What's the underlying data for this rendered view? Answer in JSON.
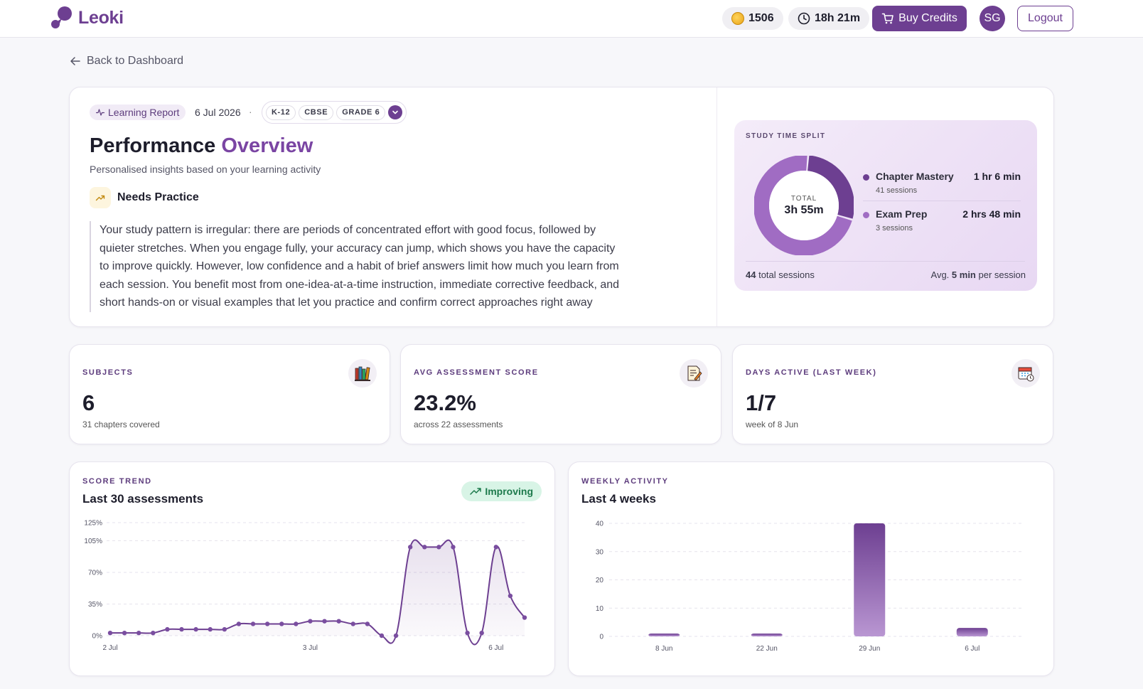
{
  "app": {
    "name": "Leoki"
  },
  "header": {
    "credits": "1506",
    "time_left": "18h 21m",
    "buy_label": "Buy Credits",
    "avatar_initials": "SG",
    "logout_label": "Logout"
  },
  "nav": {
    "back_label": "Back to Dashboard"
  },
  "report": {
    "tag": "Learning Report",
    "date": "6 Jul 2026",
    "separator": "·",
    "tags": [
      "K-12",
      "CBSE",
      "GRADE 6"
    ],
    "title_plain": "Performance",
    "title_accent": "Overview",
    "subtitle": "Personalised insights based on your learning activity",
    "status": "Needs Practice",
    "insight": "Your study pattern is irregular: there are periods of concentrated effort with good focus, followed by quieter stretches. When you engage fully, your accuracy can jump, which shows you have the capacity to improve quickly. However, low confidence and a habit of brief answers limit how much you learn from each session. You benefit most from one-idea-at-a-time instruction, immediate corrective feedback, and short hands-on or visual examples that let you practice and confirm correct approaches right away"
  },
  "study_split": {
    "title": "STUDY TIME SPLIT",
    "total_label": "TOTAL",
    "total_value": "3h 55m",
    "items": [
      {
        "name": "Chapter Mastery",
        "sessions": "41 sessions",
        "value": "1 hr 6 min",
        "color": "#6d3f91",
        "minutes": 66
      },
      {
        "name": "Exam Prep",
        "sessions": "3 sessions",
        "value": "2 hrs 48 min",
        "color": "#a06cc3",
        "minutes": 168
      }
    ],
    "total_sessions_num": "44",
    "total_sessions_text": "total sessions",
    "avg_prefix": "Avg.",
    "avg_value": "5 min",
    "avg_suffix": "per session"
  },
  "stats": [
    {
      "label": "SUBJECTS",
      "value": "6",
      "sub": "31 chapters covered",
      "icon": "books-icon"
    },
    {
      "label": "AVG ASSESSMENT SCORE",
      "value": "23.2%",
      "sub": "across 22 assessments",
      "icon": "assessment-icon"
    },
    {
      "label": "DAYS ACTIVE (LAST WEEK)",
      "value": "1/7",
      "sub": "week of 8 Jun",
      "icon": "calendar-icon"
    }
  ],
  "score_trend": {
    "eyebrow": "SCORE TREND",
    "title": "Last 30 assessments",
    "badge": "Improving"
  },
  "weekly_activity": {
    "eyebrow": "WEEKLY ACTIVITY",
    "title": "Last 4 weeks"
  },
  "colors": {
    "accent": "#6d3f91",
    "accent_light": "#a06cc3",
    "improving_bg": "#d8f4e6",
    "improving_fg": "#1d7a4c"
  },
  "chart_data": [
    {
      "type": "line",
      "y_ticks": [
        "0%",
        "35%",
        "70%",
        "105%",
        "125%"
      ],
      "y_tick_values": [
        0,
        35,
        70,
        105,
        125
      ],
      "ylim": [
        0,
        125
      ],
      "x_tick_labels": [
        "2 Jul",
        "3 Jul",
        "6 Jul"
      ],
      "x_tick_index": [
        0,
        14,
        27
      ],
      "values": [
        3,
        3,
        3,
        3,
        7,
        7,
        7,
        7,
        7,
        13,
        13,
        13,
        13,
        13,
        16,
        16,
        16,
        13,
        13,
        0,
        0,
        98,
        98,
        98,
        98,
        3,
        3,
        98,
        44,
        20
      ],
      "grid": true
    },
    {
      "type": "bar",
      "categories": [
        "8 Jun",
        "22 Jun",
        "29 Jun",
        "6 Jul"
      ],
      "values": [
        1,
        1,
        40,
        3
      ],
      "y_ticks": [
        "0",
        "10",
        "20",
        "30",
        "40"
      ],
      "ylim": [
        0,
        40
      ],
      "grid": true
    }
  ]
}
